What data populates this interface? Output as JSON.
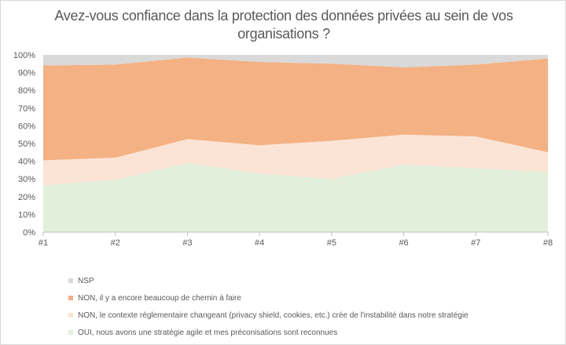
{
  "chart_data": {
    "type": "area",
    "title": "Avez-vous confiance dans la protection des données privées au sein de vos organisations ?",
    "categories": [
      "#1",
      "#2",
      "#3",
      "#4",
      "#5",
      "#6",
      "#7",
      "#8"
    ],
    "y_ticks": [
      "0%",
      "10%",
      "20%",
      "30%",
      "40%",
      "50%",
      "60%",
      "70%",
      "80%",
      "90%",
      "100%"
    ],
    "ylim": [
      0,
      100
    ],
    "stacked": true,
    "grid": false,
    "legend_position": "bottom",
    "series": [
      {
        "name": "OUI, nous avons une stratégie agile et mes préconisations sont reconnues",
        "color": "#e2efda",
        "values": [
          26.5,
          29.5,
          39.0,
          33.0,
          30.0,
          38.0,
          36.0,
          34.0
        ]
      },
      {
        "name": "NON, le contexte réglementaire changeant (privacy shield, cookies, etc.) crée de l'instabilité dans notre stratégie",
        "color": "#fbe4d6",
        "values": [
          14.0,
          12.5,
          13.5,
          16.0,
          21.5,
          17.0,
          18.0,
          11.0
        ]
      },
      {
        "name": "NON, il y a encore beaucoup de chemin à faire",
        "color": "#f4b183",
        "values": [
          53.5,
          52.5,
          46.0,
          47.0,
          43.5,
          38.0,
          40.5,
          53.0
        ]
      },
      {
        "name": "NSP",
        "color": "#d9d9d9",
        "values": [
          6.0,
          5.5,
          1.5,
          4.0,
          5.0,
          7.0,
          5.5,
          2.0
        ]
      }
    ]
  }
}
